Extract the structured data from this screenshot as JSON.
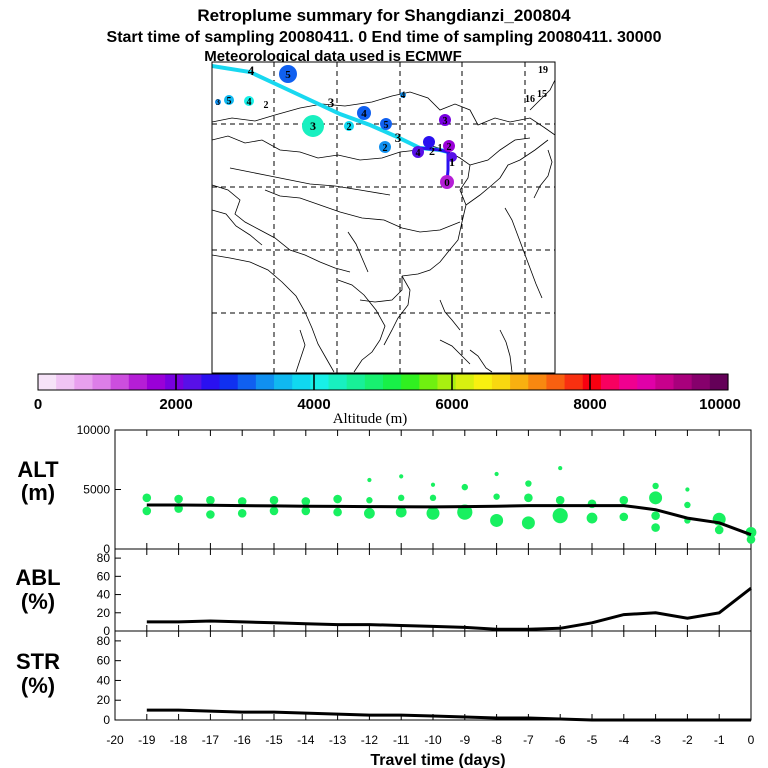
{
  "title": {
    "line1": "Retroplume summary for Shangdianzi_200804",
    "line2": "Start time of sampling 20080411.    0    End time of sampling 20080411. 30000",
    "line3": "Meteorological data used is ECMWF"
  },
  "map": {
    "labels": [
      {
        "text": "4",
        "role": "trajectory-age-label"
      },
      {
        "text": "5",
        "role": "cluster-center"
      },
      {
        "text": "3",
        "role": "trajectory-age-label"
      },
      {
        "text": "4",
        "role": "cluster-center"
      },
      {
        "text": "3",
        "role": "cluster-center"
      },
      {
        "text": "2",
        "role": "cluster-center"
      },
      {
        "text": "2",
        "role": "cluster-center"
      },
      {
        "text": "3",
        "role": "trajectory-age-label"
      },
      {
        "text": "2",
        "role": "trajectory-age-label"
      },
      {
        "text": "1",
        "role": "trajectory-age-label"
      },
      {
        "text": "5",
        "role": "cluster-center"
      },
      {
        "text": "4",
        "role": "cluster-center"
      },
      {
        "text": "3",
        "role": "cluster-center"
      },
      {
        "text": "2",
        "role": "cluster-center"
      },
      {
        "text": "1",
        "role": "cluster-center"
      },
      {
        "text": "0",
        "role": "cluster-center"
      },
      {
        "text": "4",
        "role": "cluster-center"
      },
      {
        "text": "19",
        "role": "cluster-center"
      },
      {
        "text": "16",
        "role": "cluster-center"
      },
      {
        "text": "15",
        "role": "cluster-center"
      },
      {
        "text": "3",
        "role": "cluster-center"
      },
      {
        "text": "5",
        "role": "cluster-center"
      },
      {
        "text": "4",
        "role": "cluster-center"
      },
      {
        "text": "2",
        "role": "cluster-center"
      }
    ]
  },
  "colorbar": {
    "colors": [
      "#f6e3f8",
      "#f0c4f4",
      "#e8a0ee",
      "#dd7ee8",
      "#cc4ede",
      "#b51ed6",
      "#9a00d8",
      "#7800e0",
      "#5810e8",
      "#2a10f0",
      "#1030f0",
      "#1060f0",
      "#1090f0",
      "#10b8f0",
      "#10d8f0",
      "#18f0e8",
      "#18f0c0",
      "#18f098",
      "#18f070",
      "#18f048",
      "#30f020",
      "#70f010",
      "#a8f010",
      "#d8f010",
      "#f8f010",
      "#f8d810",
      "#f8b010",
      "#f88810",
      "#f86010",
      "#f83010",
      "#f80010",
      "#f80060",
      "#f00090",
      "#e000a8",
      "#c8008c",
      "#a8007c",
      "#86006c",
      "#640058"
    ],
    "ticks": [
      "0",
      "2000",
      "4000",
      "6000",
      "8000",
      "10000"
    ],
    "label": "Altitude (m)",
    "range": [
      0,
      10000
    ]
  },
  "chart_data": [
    {
      "type": "line",
      "title": "ALT",
      "ylabel": "ALT\n(m)",
      "ylabel_line1": "ALT",
      "ylabel_line2": "(m)",
      "ylim": [
        0,
        10000
      ],
      "yticks": [
        "0",
        "5000",
        "10000"
      ],
      "xlim": [
        -20,
        0
      ],
      "x": [
        -19,
        -18,
        -17,
        -16,
        -15,
        -14,
        -13,
        -12,
        -11,
        -10,
        -9,
        -8,
        -7,
        -6,
        -5,
        -4,
        -3,
        -2,
        -1,
        0
      ],
      "series": [
        {
          "name": "mean altitude",
          "values": [
            3700,
            3700,
            3680,
            3650,
            3620,
            3600,
            3580,
            3560,
            3550,
            3540,
            3560,
            3600,
            3650,
            3650,
            3650,
            3650,
            3300,
            2600,
            2200,
            1200
          ]
        }
      ],
      "points": [
        {
          "x": -19,
          "y": 4300,
          "s": 3
        },
        {
          "x": -19,
          "y": 3200,
          "s": 3
        },
        {
          "x": -18,
          "y": 4200,
          "s": 3
        },
        {
          "x": -18,
          "y": 3400,
          "s": 3
        },
        {
          "x": -17,
          "y": 4100,
          "s": 3
        },
        {
          "x": -17,
          "y": 2900,
          "s": 3
        },
        {
          "x": -16,
          "y": 4000,
          "s": 3
        },
        {
          "x": -16,
          "y": 3000,
          "s": 3
        },
        {
          "x": -15,
          "y": 4100,
          "s": 3
        },
        {
          "x": -15,
          "y": 3200,
          "s": 3
        },
        {
          "x": -14,
          "y": 4000,
          "s": 3
        },
        {
          "x": -14,
          "y": 3200,
          "s": 3
        },
        {
          "x": -13,
          "y": 4200,
          "s": 3
        },
        {
          "x": -13,
          "y": 3100,
          "s": 3
        },
        {
          "x": -12,
          "y": 5800,
          "s": 1
        },
        {
          "x": -12,
          "y": 4100,
          "s": 2
        },
        {
          "x": -12,
          "y": 3000,
          "s": 4
        },
        {
          "x": -11,
          "y": 6100,
          "s": 1
        },
        {
          "x": -11,
          "y": 4300,
          "s": 2
        },
        {
          "x": -11,
          "y": 3100,
          "s": 4
        },
        {
          "x": -10,
          "y": 5400,
          "s": 1
        },
        {
          "x": -10,
          "y": 4300,
          "s": 2
        },
        {
          "x": -10,
          "y": 3000,
          "s": 5
        },
        {
          "x": -9,
          "y": 5200,
          "s": 2
        },
        {
          "x": -9,
          "y": 3100,
          "s": 6
        },
        {
          "x": -8,
          "y": 6300,
          "s": 1
        },
        {
          "x": -8,
          "y": 4400,
          "s": 2
        },
        {
          "x": -8,
          "y": 2400,
          "s": 5
        },
        {
          "x": -7,
          "y": 5500,
          "s": 2
        },
        {
          "x": -7,
          "y": 4300,
          "s": 3
        },
        {
          "x": -7,
          "y": 2200,
          "s": 5
        },
        {
          "x": -6,
          "y": 6800,
          "s": 1
        },
        {
          "x": -6,
          "y": 4100,
          "s": 3
        },
        {
          "x": -6,
          "y": 2800,
          "s": 6
        },
        {
          "x": -5,
          "y": 3800,
          "s": 3
        },
        {
          "x": -5,
          "y": 2600,
          "s": 4
        },
        {
          "x": -4,
          "y": 4100,
          "s": 3
        },
        {
          "x": -4,
          "y": 2700,
          "s": 3
        },
        {
          "x": -3,
          "y": 5300,
          "s": 2
        },
        {
          "x": -3,
          "y": 4300,
          "s": 5
        },
        {
          "x": -3,
          "y": 2800,
          "s": 3
        },
        {
          "x": -3,
          "y": 1800,
          "s": 3
        },
        {
          "x": -2,
          "y": 5000,
          "s": 1
        },
        {
          "x": -2,
          "y": 3700,
          "s": 2
        },
        {
          "x": -2,
          "y": 2400,
          "s": 2
        },
        {
          "x": -1,
          "y": 2500,
          "s": 5
        },
        {
          "x": -1,
          "y": 1600,
          "s": 3
        },
        {
          "x": 0,
          "y": 1400,
          "s": 4
        },
        {
          "x": 0,
          "y": 800,
          "s": 3
        }
      ]
    },
    {
      "type": "line",
      "title": "ABL",
      "ylabel": "ABL\n(%)",
      "ylabel_line1": "ABL",
      "ylabel_line2": "(%)",
      "ylim": [
        0,
        90
      ],
      "yticks": [
        "0",
        "20",
        "40",
        "60",
        "80"
      ],
      "xlim": [
        -20,
        0
      ],
      "x": [
        -19,
        -18,
        -17,
        -16,
        -15,
        -14,
        -13,
        -12,
        -11,
        -10,
        -9,
        -8,
        -7,
        -6,
        -5,
        -4,
        -3,
        -2,
        -1,
        0
      ],
      "series": [
        {
          "name": "ABL fraction",
          "values": [
            10,
            10,
            11,
            10,
            9,
            8,
            7,
            7,
            6,
            5,
            4,
            2,
            2,
            3,
            9,
            18,
            20,
            14,
            20,
            47
          ]
        }
      ]
    },
    {
      "type": "line",
      "title": "STR",
      "ylabel": "STR\n(%)",
      "ylabel_line1": "STR",
      "ylabel_line2": "(%)",
      "ylim": [
        0,
        90
      ],
      "yticks": [
        "0",
        "20",
        "40",
        "60",
        "80"
      ],
      "xlim": [
        -20,
        0
      ],
      "xlabel": "Travel time (days)",
      "xticks": [
        "-20",
        "-19",
        "-18",
        "-17",
        "-16",
        "-15",
        "-14",
        "-13",
        "-12",
        "-11",
        "-10",
        "-9",
        "-8",
        "-7",
        "-6",
        "-5",
        "-4",
        "-3",
        "-2",
        "-1",
        "0"
      ],
      "x": [
        -19,
        -18,
        -17,
        -16,
        -15,
        -14,
        -13,
        -12,
        -11,
        -10,
        -9,
        -8,
        -7,
        -6,
        -5,
        -4,
        -3,
        -2,
        -1,
        0
      ],
      "series": [
        {
          "name": "stratospheric fraction",
          "values": [
            10,
            10,
            9,
            8,
            8,
            7,
            6,
            5,
            5,
            4,
            3,
            2,
            2,
            1,
            0,
            0,
            0,
            0,
            0,
            0
          ]
        }
      ]
    }
  ]
}
